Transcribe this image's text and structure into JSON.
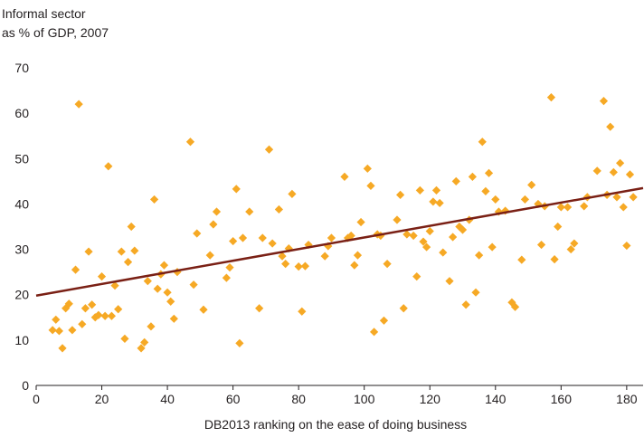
{
  "chart_data": {
    "type": "scatter",
    "title": "",
    "ylabel_lines": [
      "Informal sector",
      "as % of GDP, 2007"
    ],
    "xlabel": "DB2013 ranking on the ease of doing business",
    "xlim": [
      0,
      185
    ],
    "ylim": [
      0,
      70
    ],
    "xticks": [
      0,
      20,
      40,
      60,
      80,
      100,
      120,
      140,
      160,
      180
    ],
    "yticks": [
      0,
      10,
      20,
      30,
      40,
      50,
      60,
      70
    ],
    "grid": false,
    "legend": "none",
    "colors": {
      "points": "#f6a925",
      "trend": "#7a2015",
      "axis": "#231f20"
    },
    "trendline": {
      "x": [
        0,
        185
      ],
      "y": [
        19.8,
        43.5
      ]
    },
    "points": [
      [
        5,
        12.2
      ],
      [
        6,
        14.5
      ],
      [
        7,
        12.0
      ],
      [
        8,
        8.2
      ],
      [
        9,
        17.0
      ],
      [
        10,
        18.0
      ],
      [
        11,
        12.2
      ],
      [
        12,
        25.5
      ],
      [
        13,
        62.0
      ],
      [
        14,
        13.5
      ],
      [
        15,
        17.0
      ],
      [
        16,
        29.5
      ],
      [
        17,
        17.8
      ],
      [
        18,
        15.0
      ],
      [
        19,
        15.5
      ],
      [
        20,
        24.0
      ],
      [
        21,
        15.3
      ],
      [
        22,
        48.3
      ],
      [
        23,
        15.3
      ],
      [
        24,
        22.0
      ],
      [
        25,
        16.8
      ],
      [
        26,
        29.5
      ],
      [
        27,
        10.3
      ],
      [
        28,
        27.2
      ],
      [
        29,
        35.0
      ],
      [
        30,
        29.7
      ],
      [
        32,
        8.2
      ],
      [
        33,
        9.5
      ],
      [
        34,
        23.0
      ],
      [
        35,
        13.0
      ],
      [
        36,
        41.0
      ],
      [
        37,
        21.3
      ],
      [
        38,
        24.5
      ],
      [
        39,
        26.5
      ],
      [
        40,
        20.5
      ],
      [
        41,
        18.5
      ],
      [
        42,
        14.7
      ],
      [
        43,
        25.0
      ],
      [
        47,
        53.7
      ],
      [
        48,
        22.2
      ],
      [
        49,
        33.5
      ],
      [
        51,
        16.7
      ],
      [
        53,
        28.7
      ],
      [
        54,
        35.5
      ],
      [
        55,
        38.3
      ],
      [
        58,
        23.7
      ],
      [
        59,
        26.0
      ],
      [
        60,
        31.8
      ],
      [
        61,
        43.3
      ],
      [
        62,
        9.3
      ],
      [
        63,
        32.5
      ],
      [
        65,
        38.3
      ],
      [
        68,
        17.0
      ],
      [
        69,
        32.5
      ],
      [
        71,
        52.0
      ],
      [
        72,
        31.3
      ],
      [
        74,
        38.8
      ],
      [
        75,
        28.5
      ],
      [
        76,
        26.8
      ],
      [
        77,
        30.2
      ],
      [
        78,
        42.2
      ],
      [
        80,
        26.2
      ],
      [
        81,
        16.3
      ],
      [
        82,
        26.3
      ],
      [
        83,
        31.0
      ],
      [
        88,
        28.5
      ],
      [
        89,
        30.7
      ],
      [
        90,
        32.5
      ],
      [
        94,
        46.0
      ],
      [
        95,
        32.5
      ],
      [
        96,
        33.0
      ],
      [
        97,
        26.5
      ],
      [
        98,
        28.7
      ],
      [
        99,
        36.0
      ],
      [
        101,
        47.8
      ],
      [
        102,
        44.0
      ],
      [
        103,
        11.8
      ],
      [
        104,
        33.3
      ],
      [
        105,
        33.0
      ],
      [
        106,
        14.3
      ],
      [
        107,
        26.8
      ],
      [
        110,
        36.5
      ],
      [
        111,
        42.0
      ],
      [
        112,
        17.0
      ],
      [
        113,
        33.3
      ],
      [
        115,
        33.0
      ],
      [
        116,
        24.0
      ],
      [
        117,
        43.0
      ],
      [
        118,
        31.7
      ],
      [
        119,
        30.5
      ],
      [
        120,
        34.0
      ],
      [
        121,
        40.5
      ],
      [
        122,
        43.0
      ],
      [
        123,
        40.2
      ],
      [
        124,
        29.3
      ],
      [
        126,
        23.0
      ],
      [
        127,
        32.7
      ],
      [
        128,
        45.0
      ],
      [
        129,
        35.0
      ],
      [
        130,
        34.3
      ],
      [
        131,
        17.8
      ],
      [
        132,
        36.5
      ],
      [
        133,
        46.0
      ],
      [
        134,
        20.5
      ],
      [
        135,
        28.7
      ],
      [
        136,
        53.7
      ],
      [
        137,
        42.8
      ],
      [
        138,
        46.8
      ],
      [
        139,
        30.5
      ],
      [
        140,
        41.0
      ],
      [
        141,
        38.3
      ],
      [
        143,
        38.5
      ],
      [
        145,
        18.3
      ],
      [
        146,
        17.3
      ],
      [
        148,
        27.7
      ],
      [
        149,
        41.0
      ],
      [
        151,
        44.2
      ],
      [
        153,
        40.0
      ],
      [
        154,
        31.0
      ],
      [
        155,
        39.5
      ],
      [
        157,
        63.5
      ],
      [
        158,
        27.8
      ],
      [
        159,
        35.0
      ],
      [
        160,
        39.3
      ],
      [
        162,
        39.3
      ],
      [
        163,
        30.0
      ],
      [
        164,
        31.3
      ],
      [
        167,
        39.5
      ],
      [
        168,
        41.5
      ],
      [
        171,
        47.3
      ],
      [
        173,
        62.7
      ],
      [
        174,
        42.0
      ],
      [
        175,
        57.0
      ],
      [
        176,
        47.0
      ],
      [
        177,
        41.5
      ],
      [
        178,
        49.0
      ],
      [
        179,
        39.3
      ],
      [
        180,
        30.8
      ],
      [
        181,
        46.5
      ],
      [
        182,
        41.5
      ]
    ]
  }
}
